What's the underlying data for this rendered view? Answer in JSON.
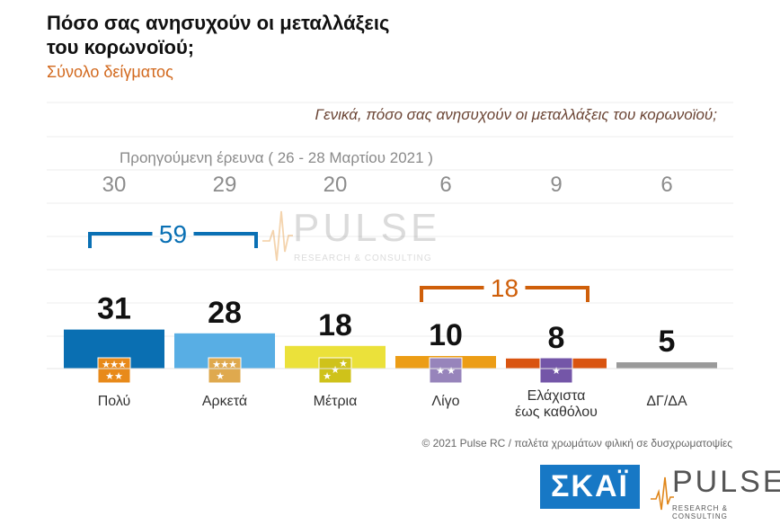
{
  "header": {
    "title": "Πόσο σας ανησυχούν οι μεταλλάξεις του κορωνοϊού;",
    "subtitle": "Σύνολο δείγματος",
    "question": "Γενικά, πόσο σας ανησυχούν οι μεταλλάξεις του κορωνοϊού;",
    "previous_label": "Προηγούμενη έρευνα  ( 26 - 28 Μαρτίου 2021 )"
  },
  "chart_data": {
    "type": "bar",
    "categories": [
      "Πολύ",
      "Αρκετά",
      "Μέτρια",
      "Λίγο",
      "Ελάχιστα έως καθόλου",
      "ΔΓ/ΔΑ"
    ],
    "category_lines": [
      [
        "Πολύ"
      ],
      [
        "Αρκετά"
      ],
      [
        "Μέτρια"
      ],
      [
        "Λίγο"
      ],
      [
        "Ελάχιστα",
        "έως καθόλου"
      ],
      [
        "ΔΓ/ΔΑ"
      ]
    ],
    "series": [
      {
        "values": [
          31,
          28,
          18,
          10,
          8,
          5
        ]
      },
      {
        "name": "Προηγούμενη έρευνα (26 - 28 Μαρτίου 2021)",
        "values": [
          30,
          29,
          20,
          6,
          9,
          6
        ]
      }
    ],
    "groups": [
      {
        "categories": [
          "Πολύ",
          "Αρκετά"
        ],
        "total": "59",
        "color": "#0a70b4"
      },
      {
        "categories": [
          "Λίγο",
          "Ελάχιστα έως καθόλου"
        ],
        "total": "18",
        "color": "#cf5f0a"
      }
    ],
    "colors": [
      "#0a6fb2",
      "#58aee4",
      "#ebe13a",
      "#ec9d16",
      "#d95410",
      "#9a9a9a"
    ],
    "icon_colors": [
      "#e88a1a",
      "#dfa94e",
      "#cfc21a",
      "#9784bb",
      "#7456a8"
    ],
    "stars": [
      5,
      4,
      3,
      2,
      1
    ],
    "ylim": [
      0,
      50
    ],
    "grid": true
  },
  "watermark": {
    "word": "PULSE",
    "tagline": "RESEARCH & CONSULTING"
  },
  "footer": "© 2021 Pulse RC  /  παλέτα χρωμάτων φιλική σε δυσχρωματοψίες",
  "logos": {
    "skai": "ΣΚΑΪ",
    "pulse": "PULSE",
    "pulse_tagline": "RESEARCH & CONSULTING"
  }
}
